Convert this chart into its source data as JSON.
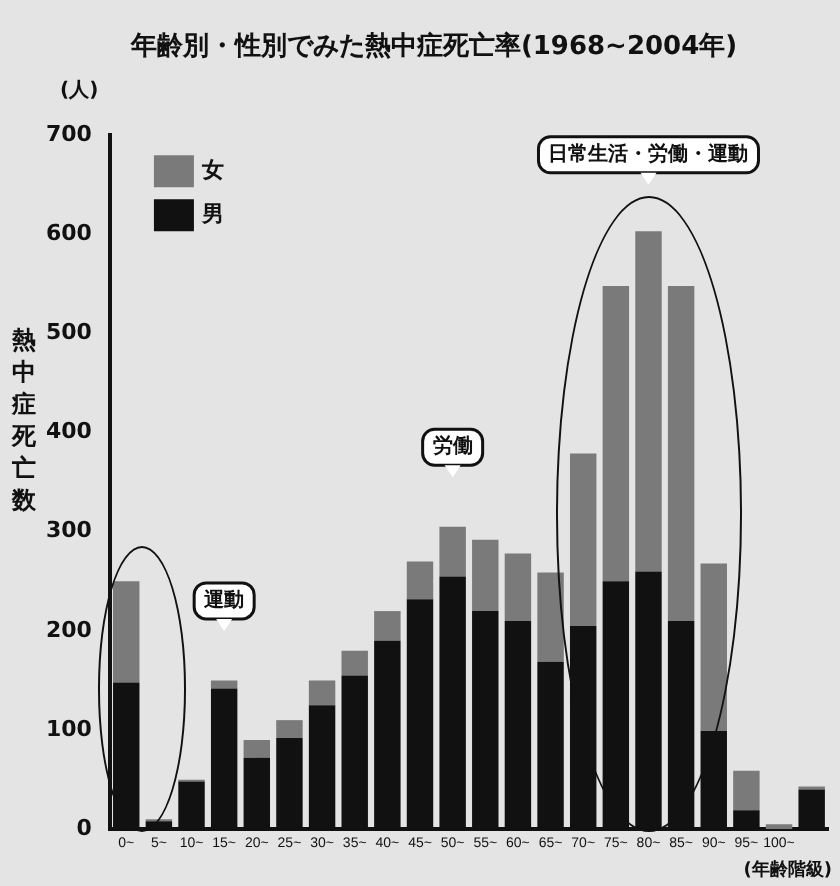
{
  "chart_data": {
    "type": "bar",
    "title": "年齢別・性別でみた熱中症死亡率(1968~2004年)",
    "ylabel": "熱中症死亡数",
    "xlabel": "(年齢階級)",
    "categories": [
      "0~",
      "5~",
      "10~",
      "15~",
      "20~",
      "25~",
      "30~",
      "35~",
      "40~",
      "45~",
      "50~",
      "55~",
      "60~",
      "65~",
      "70~",
      "75~",
      "80~",
      "85~",
      "90~",
      "95~",
      "100~",
      null
    ],
    "stacked": true,
    "series": [
      {
        "name": "男",
        "color": "#111111",
        "values": [
          148,
          8,
          48,
          142,
          72,
          92,
          125,
          155,
          190,
          232,
          255,
          220,
          210,
          169,
          205,
          250,
          260,
          210,
          99,
          19,
          0,
          40
        ]
      },
      {
        "name": "女",
        "color": "#7a7a7a",
        "values": [
          102,
          2,
          2,
          8,
          18,
          18,
          25,
          25,
          30,
          38,
          50,
          72,
          68,
          90,
          174,
          298,
          343,
          338,
          169,
          40,
          5,
          3
        ]
      }
    ],
    "ylim": [
      0,
      700
    ],
    "yticks": [
      0,
      100,
      200,
      300,
      400,
      500,
      600,
      700
    ],
    "grid": false,
    "legend": "top left",
    "annotations": [
      "(人)",
      "運動",
      "労働",
      "日常生活・労働・運動"
    ]
  }
}
